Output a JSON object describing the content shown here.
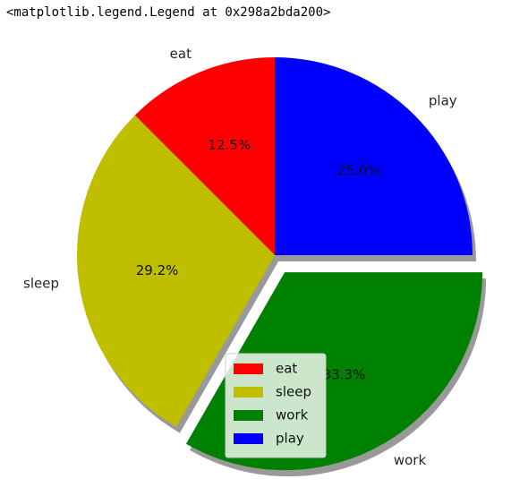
{
  "output_repr": "<matplotlib.legend.Legend at 0x298a2bda200>",
  "chart_data": {
    "type": "pie",
    "slices": [
      {
        "label": "eat",
        "value": 12.5,
        "color": "#ff0000",
        "explode": false
      },
      {
        "label": "sleep",
        "value": 29.2,
        "color": "#bfbf00",
        "explode": false
      },
      {
        "label": "work",
        "value": 33.3,
        "color": "#008000",
        "explode": true
      },
      {
        "label": "play",
        "value": 25.0,
        "color": "#0000ff",
        "explode": false
      }
    ],
    "pct_labels": [
      "12.5%",
      "29.2%",
      "33.3%",
      "25.0%"
    ],
    "shadow": true,
    "start_angle_deg": 90,
    "counterclockwise": true,
    "legend": {
      "placement": "lower-left-of-center",
      "entries": [
        "eat",
        "sleep",
        "work",
        "play"
      ]
    }
  }
}
